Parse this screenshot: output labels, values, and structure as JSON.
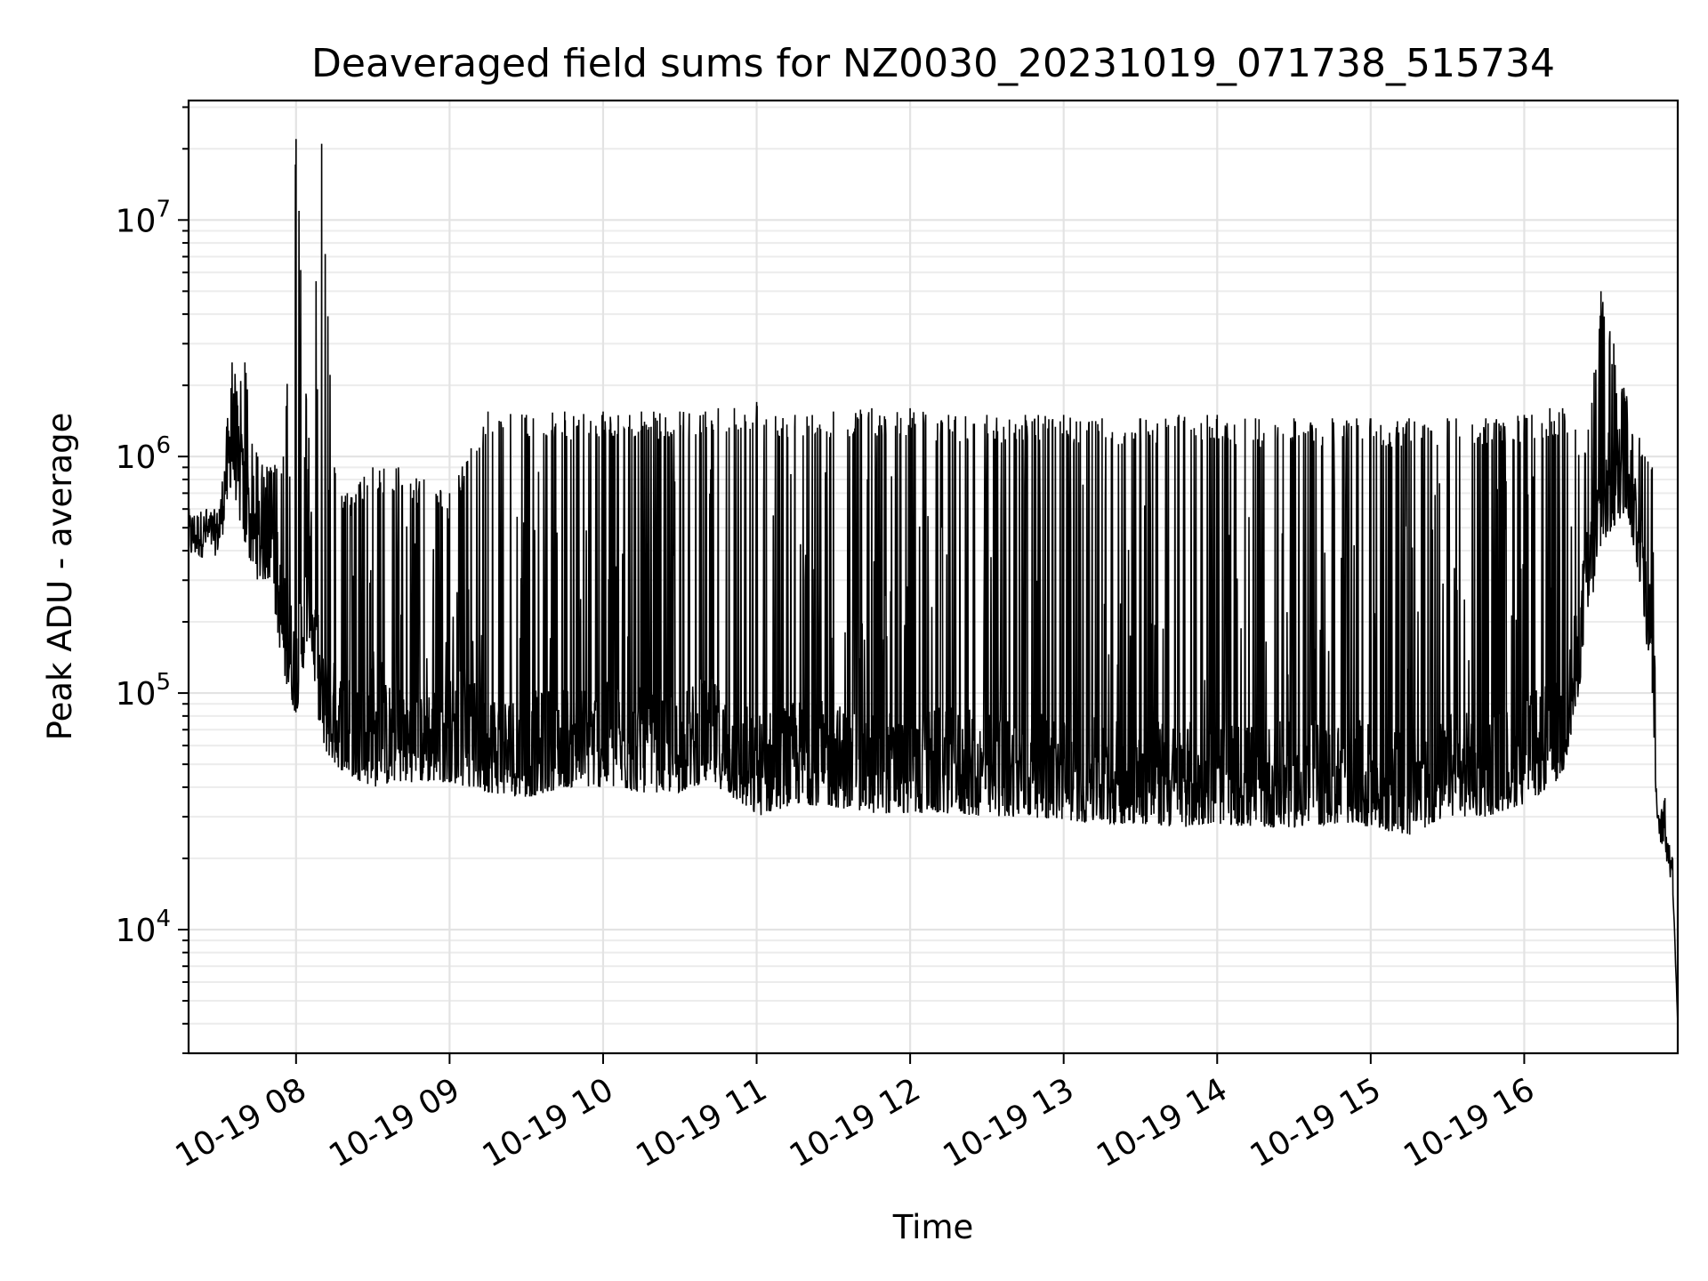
{
  "chart_data": {
    "type": "line",
    "title": "Deaveraged field sums for NZ0030_20231019_071738_515734",
    "xlabel": "Time",
    "ylabel": "Peak ADU - average",
    "x_axis": {
      "kind": "time",
      "range": [
        "2023-10-19 07:18",
        "2023-10-19 17:00"
      ],
      "tick_values": [
        "2023-10-19 08:00",
        "2023-10-19 09:00",
        "2023-10-19 10:00",
        "2023-10-19 11:00",
        "2023-10-19 12:00",
        "2023-10-19 13:00",
        "2023-10-19 14:00",
        "2023-10-19 15:00",
        "2023-10-19 16:00"
      ],
      "tick_labels": [
        "10-19 08",
        "10-19 09",
        "10-19 10",
        "10-19 11",
        "10-19 12",
        "10-19 13",
        "10-19 14",
        "10-19 15",
        "10-19 16"
      ],
      "tick_label_rotation_deg": -30
    },
    "y_axis": {
      "scale": "log",
      "range": [
        3000,
        32000000
      ],
      "ticks": [
        {
          "value": 10000,
          "base": "10",
          "exp": "4"
        },
        {
          "value": 100000,
          "base": "10",
          "exp": "5"
        },
        {
          "value": 1000000,
          "base": "10",
          "exp": "6"
        },
        {
          "value": 10000000,
          "base": "10",
          "exp": "7"
        }
      ]
    },
    "grid": true,
    "line_color": "#000000",
    "series": [
      {
        "shape": "peak-and-trough envelope with frequent spikes",
        "times": [
          "07:18",
          "07:25",
          "07:30",
          "07:35",
          "07:40",
          "07:45",
          "07:50",
          "07:55",
          "08:00",
          "08:05",
          "08:10",
          "08:15",
          "08:20",
          "08:30",
          "08:40",
          "08:50",
          "09:00",
          "09:15",
          "09:30",
          "09:45",
          "10:00",
          "10:15",
          "10:30",
          "10:40",
          "10:45",
          "11:00",
          "11:15",
          "11:30",
          "11:45",
          "12:00",
          "12:15",
          "12:30",
          "12:45",
          "13:00",
          "13:15",
          "13:30",
          "13:45",
          "14:00",
          "14:15",
          "14:30",
          "14:45",
          "15:00",
          "15:15",
          "15:30",
          "15:45",
          "16:00",
          "16:10",
          "16:15",
          "16:20",
          "16:25",
          "16:30",
          "16:35",
          "16:40",
          "16:45",
          "16:50",
          "16:52",
          "16:55",
          "16:58",
          "17:00"
        ],
        "peak": [
          600000,
          600000,
          600000,
          2500000,
          2500000,
          1000000,
          900000,
          1000000,
          22000000,
          1200000,
          21000000,
          900000,
          700000,
          900000,
          900000,
          800000,
          700000,
          1550000,
          1500000,
          1550000,
          1550000,
          1550000,
          1550000,
          1550000,
          1600000,
          1700000,
          1500000,
          1550000,
          1600000,
          1600000,
          1500000,
          1500000,
          1500000,
          1500000,
          1450000,
          1450000,
          1500000,
          1500000,
          1450000,
          1450000,
          1450000,
          1450000,
          1450000,
          1450000,
          1450000,
          1500000,
          1600000,
          1600000,
          1300000,
          1300000,
          5000000,
          3000000,
          1800000,
          1200000,
          900000,
          30000,
          36000,
          20000,
          4000
        ],
        "trough": [
          350000,
          380000,
          380000,
          800000,
          400000,
          300000,
          300000,
          120000,
          80000,
          180000,
          60000,
          50000,
          45000,
          40000,
          42000,
          42000,
          42000,
          38000,
          36000,
          40000,
          40000,
          38000,
          38000,
          42000,
          40000,
          30000,
          34000,
          33000,
          31000,
          31000,
          31000,
          30000,
          30000,
          29000,
          28000,
          28000,
          27000,
          28000,
          27000,
          27000,
          28000,
          27000,
          25000,
          30000,
          30000,
          34000,
          40000,
          45000,
          80000,
          200000,
          400000,
          500000,
          600000,
          300000,
          100000,
          26000,
          20000,
          15000,
          4000
        ]
      }
    ]
  }
}
